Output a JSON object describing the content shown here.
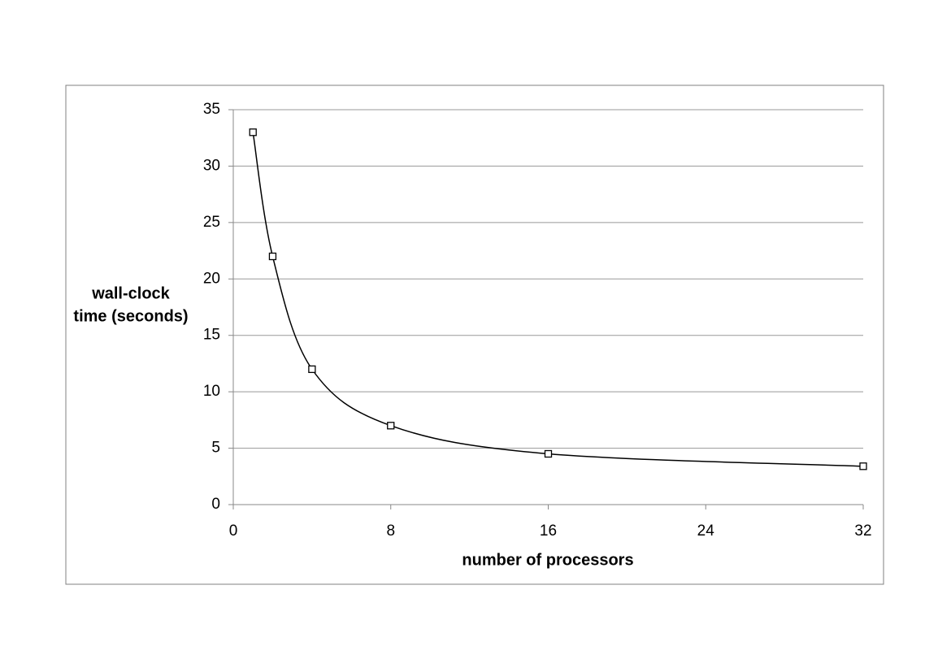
{
  "chart_data": {
    "type": "line",
    "smooth": true,
    "marker": "square",
    "xlabel": "number of processors",
    "ylabel": [
      "wall-clock",
      "time (seconds)"
    ],
    "x": [
      1,
      2,
      4,
      8,
      16,
      32
    ],
    "series": [
      {
        "color": "#000000",
        "values": [
          33,
          22,
          12,
          7,
          4.5,
          3.4
        ]
      }
    ],
    "xlim": [
      0,
      32
    ],
    "xticks": [
      0,
      8,
      16,
      24,
      32
    ],
    "ylim": [
      0,
      35
    ],
    "yticks": [
      0,
      5,
      10,
      15,
      20,
      25,
      30,
      35
    ],
    "grid": true
  }
}
